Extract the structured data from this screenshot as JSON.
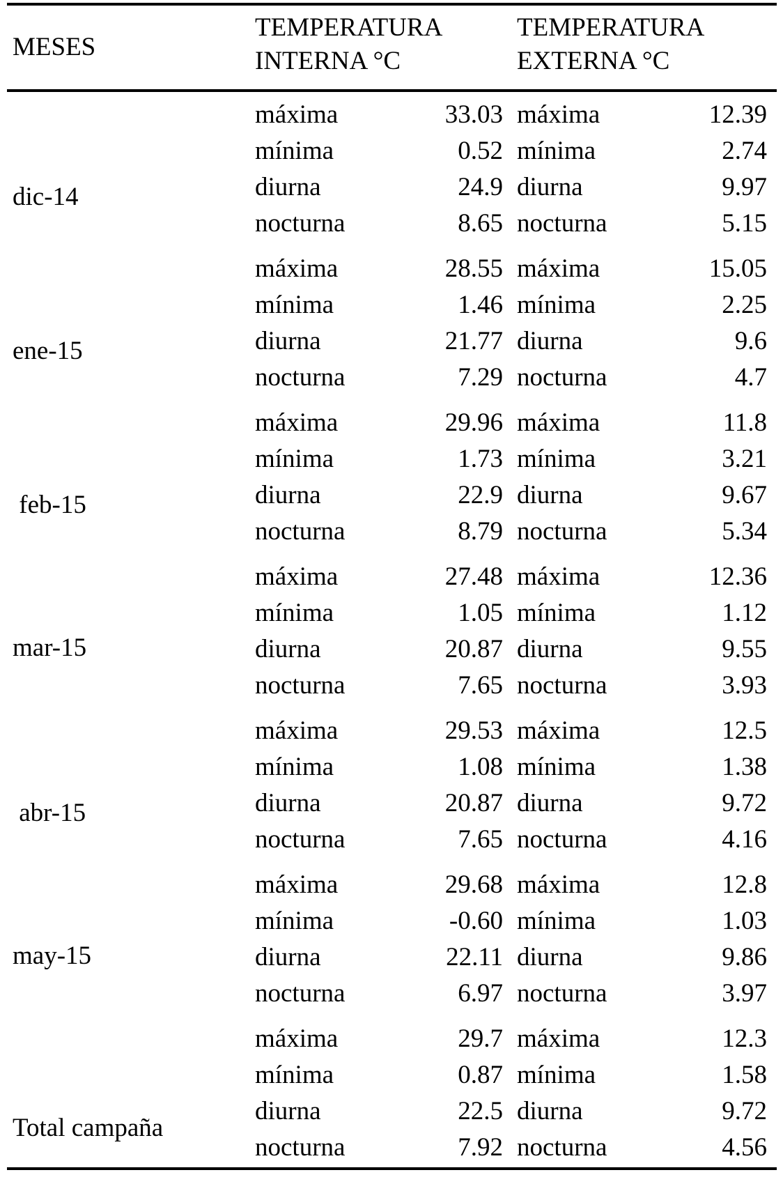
{
  "header": {
    "months": "MESES",
    "internal_line1": "TEMPERATURA",
    "internal_line2": "INTERNA °C",
    "external_line1": "TEMPERATURA",
    "external_line2": "EXTERNA °C"
  },
  "row_labels": [
    "máxima",
    "mínima",
    "diurna",
    "nocturna"
  ],
  "groups": [
    {
      "month": "dic-14",
      "internal": [
        "33.03",
        "0.52",
        "24.9",
        "8.65"
      ],
      "external": [
        "12.39",
        "2.74",
        "9.97",
        "5.15"
      ]
    },
    {
      "month": "ene-15",
      "internal": [
        "28.55",
        "1.46",
        "21.77",
        "7.29"
      ],
      "external": [
        "15.05",
        "2.25",
        "9.6",
        "4.7"
      ]
    },
    {
      "month": " feb-15",
      "internal": [
        "29.96",
        "1.73",
        "22.9",
        "8.79"
      ],
      "external": [
        "11.8",
        "3.21",
        "9.67",
        "5.34"
      ]
    },
    {
      "month": "mar-15",
      "internal": [
        "27.48",
        "1.05",
        "20.87",
        "7.65"
      ],
      "external": [
        "12.36",
        "1.12",
        "9.55",
        "3.93"
      ]
    },
    {
      "month": " abr-15",
      "internal": [
        "29.53",
        "1.08",
        "20.87",
        "7.65"
      ],
      "external": [
        "12.5",
        "1.38",
        "9.72",
        "4.16"
      ]
    },
    {
      "month": "may-15",
      "internal": [
        "29.68",
        "-0.60",
        "22.11",
        "6.97"
      ],
      "external": [
        "12.8",
        "1.03",
        "9.86",
        "3.97"
      ]
    },
    {
      "month": "Total campaña",
      "internal": [
        "29.7",
        "0.87",
        "22.5",
        "7.92"
      ],
      "external": [
        "12.3",
        "1.58",
        "9.72",
        "4.56"
      ]
    }
  ]
}
